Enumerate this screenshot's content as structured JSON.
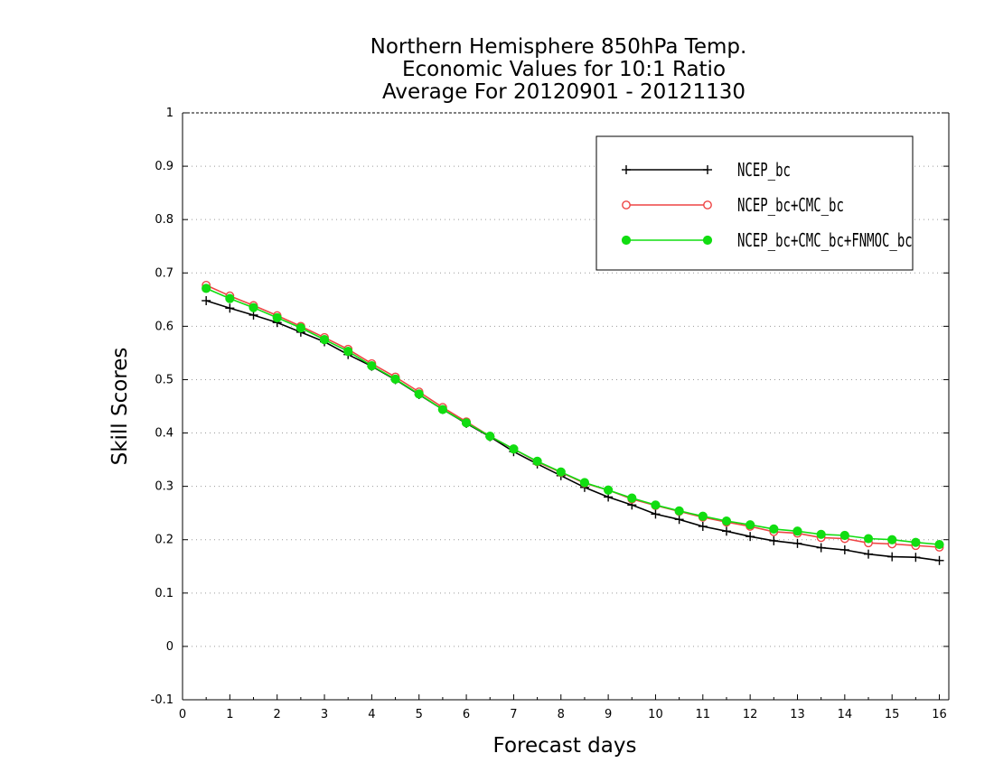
{
  "chart_data": {
    "type": "line",
    "title_lines": [
      "Northern Hemisphere 850hPa Temp.",
      "Economic Values for 10:1 Ratio",
      "Average For 20120901 - 20121130"
    ],
    "xlabel": "Forecast days",
    "ylabel": "Skill Scores",
    "xlim": [
      0,
      16.2
    ],
    "ylim": [
      -0.1,
      1
    ],
    "xticks": [
      0,
      1,
      2,
      3,
      4,
      5,
      6,
      7,
      8,
      9,
      10,
      11,
      12,
      13,
      14,
      15,
      16
    ],
    "xtick_labels": [
      "0",
      "1",
      "2",
      "3",
      "4",
      "5",
      "6",
      "7",
      "8",
      "9",
      "10",
      "11",
      "12",
      "13",
      "14",
      "15",
      "16"
    ],
    "yticks": [
      -0.1,
      0,
      0.1,
      0.2,
      0.3,
      0.4,
      0.5,
      0.6,
      0.7,
      0.8,
      0.9,
      1
    ],
    "ytick_labels": [
      "-0.1",
      "0",
      "0.1",
      "0.2",
      "0.3",
      "0.4",
      "0.5",
      "0.6",
      "0.7",
      "0.8",
      "0.9",
      "1"
    ],
    "grid": true,
    "legend_position": "top-right",
    "x": [
      0.5,
      1,
      1.5,
      2,
      2.5,
      3,
      3.5,
      4,
      4.5,
      5,
      5.5,
      6,
      6.5,
      7,
      7.5,
      8,
      8.5,
      9,
      9.5,
      10,
      10.5,
      11,
      11.5,
      12,
      12.5,
      13,
      13.5,
      14,
      14.5,
      15,
      15.5,
      16
    ],
    "series": [
      {
        "name": "NCEP_bc",
        "color": "#000000",
        "marker": "plus",
        "values": [
          0.648,
          0.634,
          0.621,
          0.607,
          0.589,
          0.571,
          0.547,
          0.525,
          0.5,
          0.472,
          0.444,
          0.418,
          0.393,
          0.365,
          0.342,
          0.32,
          0.298,
          0.28,
          0.265,
          0.248,
          0.238,
          0.225,
          0.216,
          0.206,
          0.198,
          0.193,
          0.185,
          0.181,
          0.173,
          0.168,
          0.167,
          0.161
        ]
      },
      {
        "name": "NCEP_bc+CMC_bc",
        "color": "#ee4444",
        "marker": "open-circle",
        "values": [
          0.677,
          0.657,
          0.639,
          0.62,
          0.6,
          0.579,
          0.557,
          0.53,
          0.505,
          0.477,
          0.448,
          0.421,
          0.394,
          0.37,
          0.346,
          0.326,
          0.306,
          0.293,
          0.276,
          0.264,
          0.253,
          0.242,
          0.233,
          0.225,
          0.215,
          0.212,
          0.204,
          0.202,
          0.194,
          0.192,
          0.189,
          0.186
        ]
      },
      {
        "name": "NCEP_bc+CMC_bc+FNMOC_bc",
        "color": "#11dd11",
        "marker": "filled-circle",
        "values": [
          0.671,
          0.652,
          0.635,
          0.616,
          0.597,
          0.575,
          0.553,
          0.526,
          0.501,
          0.473,
          0.444,
          0.419,
          0.394,
          0.37,
          0.347,
          0.327,
          0.307,
          0.293,
          0.278,
          0.265,
          0.254,
          0.244,
          0.235,
          0.228,
          0.22,
          0.216,
          0.21,
          0.208,
          0.202,
          0.2,
          0.195,
          0.191
        ]
      }
    ]
  }
}
